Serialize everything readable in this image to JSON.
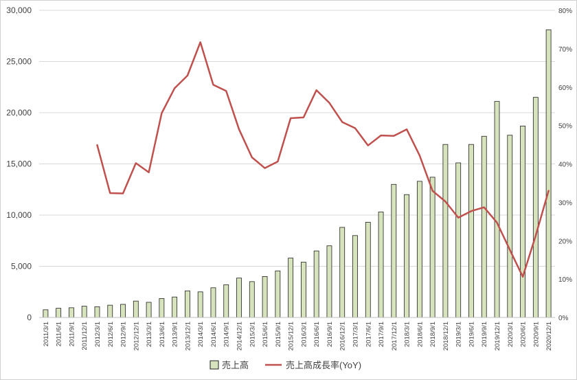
{
  "chart_data": {
    "type": "bar+line",
    "categories": [
      "2011/3/1",
      "2011/6/1",
      "2011/9/1",
      "2011/12/1",
      "2012/3/1",
      "2012/6/1",
      "2012/9/1",
      "2012/12/1",
      "2013/3/1",
      "2013/6/1",
      "2013/9/1",
      "2013/12/1",
      "2014/3/1",
      "2014/6/1",
      "2014/9/1",
      "2014/12/1",
      "2015/3/1",
      "2015/6/1",
      "2015/9/1",
      "2015/12/1",
      "2016/3/1",
      "2016/6/1",
      "2016/9/1",
      "2016/12/1",
      "2017/3/1",
      "2017/6/1",
      "2017/9/1",
      "2017/12/1",
      "2018/3/1",
      "2018/6/1",
      "2018/9/1",
      "2018/12/1",
      "2019/3/1",
      "2019/6/1",
      "2019/9/1",
      "2019/12/1",
      "2020/3/1",
      "2020/6/1",
      "2020/9/1",
      "2020/12/1"
    ],
    "series": [
      {
        "name": "売上高",
        "type": "bar",
        "axis": "left",
        "color": "#d6e3bc",
        "stroke": "#1f1f1f",
        "values": [
          750,
          900,
          950,
          1100,
          1050,
          1200,
          1280,
          1600,
          1480,
          1850,
          2000,
          2600,
          2500,
          2900,
          3200,
          3850,
          3500,
          4000,
          4550,
          5800,
          5400,
          6500,
          7000,
          8800,
          8000,
          9300,
          10300,
          13000,
          12000,
          13300,
          13700,
          16900,
          15100,
          16900,
          17700,
          21100,
          17800,
          18700,
          21500,
          28100
        ]
      },
      {
        "name": "売上高成長率(YoY)",
        "type": "line",
        "axis": "right",
        "color": "#c0504d",
        "values": [
          null,
          null,
          null,
          null,
          44.9,
          32.4,
          32.3,
          40.2,
          37.8,
          53.2,
          59.7,
          63.0,
          71.7,
          60.6,
          59.0,
          49.0,
          41.7,
          38.9,
          40.6,
          51.9,
          52.1,
          59.2,
          55.9,
          50.9,
          49.3,
          44.8,
          47.4,
          47.3,
          49.0,
          42.2,
          33.0,
          30.2,
          26.0,
          27.7,
          28.7,
          24.7,
          17.6,
          10.6,
          21.3,
          33.0
        ]
      }
    ],
    "y_left": {
      "ticks": [
        "0",
        "5,000",
        "10,000",
        "15,000",
        "20,000",
        "25,000",
        "30,000"
      ],
      "ylim": [
        0,
        30000
      ]
    },
    "y_right": {
      "ticks": [
        "0%",
        "10%",
        "20%",
        "30%",
        "40%",
        "50%",
        "60%",
        "70%",
        "80%"
      ],
      "ylim": [
        0,
        80
      ]
    },
    "grid": true,
    "legend_position": "bottom"
  }
}
